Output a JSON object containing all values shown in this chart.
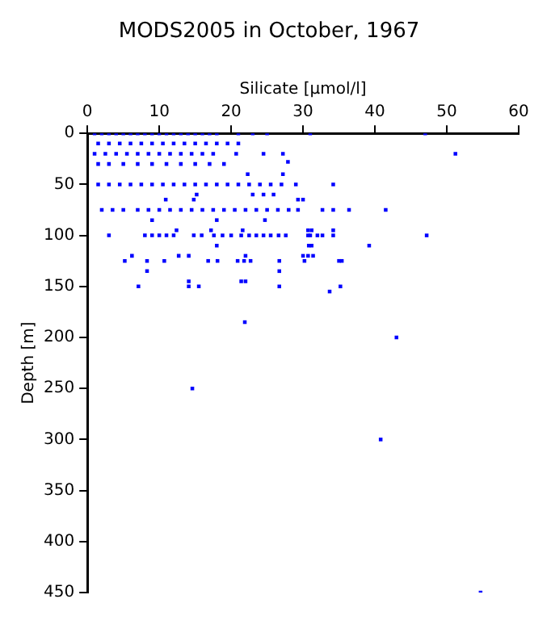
{
  "chart_data": {
    "type": "scatter",
    "title": "MODS2005 in October, 1967",
    "xlabel": "Silicate [µmol/l]",
    "ylabel": "Depth [m]",
    "xlim": [
      0,
      60
    ],
    "xticks": [
      0,
      10,
      20,
      30,
      40,
      50,
      60
    ],
    "ylim": [
      450,
      0
    ],
    "yticks": [
      0,
      50,
      100,
      150,
      200,
      250,
      300,
      350,
      400,
      450
    ],
    "grid": false,
    "legend": false,
    "marker": "square",
    "series": [
      {
        "color": "#0000ff",
        "x": [
          1,
          2,
          3,
          4,
          5,
          6,
          7,
          8,
          9,
          10,
          11,
          12,
          13,
          14,
          15,
          16,
          17,
          18,
          21,
          23,
          25,
          31,
          47,
          1.5,
          3,
          4.5,
          6,
          7.5,
          9,
          10.5,
          12,
          13.5,
          15,
          16.5,
          18,
          19.5,
          21,
          1,
          2.5,
          4,
          5.5,
          7,
          8.5,
          10,
          11.5,
          13,
          14.5,
          16,
          17.5,
          20.7,
          24.5,
          27.2,
          51.2,
          27.9,
          1.5,
          3,
          5,
          7,
          9,
          11,
          13,
          15,
          17,
          19,
          22.3,
          27.2,
          1.5,
          3,
          4.5,
          6,
          7.5,
          9,
          10.5,
          12,
          13.5,
          15,
          16.5,
          18,
          19.5,
          21,
          22.5,
          24,
          25.5,
          27,
          29,
          34.2,
          15.2,
          23,
          24.5,
          25.9,
          10.9,
          14.8,
          29.3,
          30,
          2,
          3.5,
          5,
          7,
          8.5,
          10,
          11.5,
          13,
          14.5,
          16,
          17.5,
          19,
          20.5,
          22,
          23.5,
          25,
          26.5,
          28,
          29.3,
          32.7,
          34.2,
          36.4,
          41.5,
          9,
          18,
          24.7,
          12.4,
          17.2,
          21.6,
          30.7,
          31.2,
          34.2,
          3,
          8,
          9,
          10,
          11,
          12,
          14.8,
          15.9,
          17.6,
          18.8,
          20,
          21.4,
          22.5,
          23.5,
          24.5,
          25.5,
          26.6,
          27.6,
          30.7,
          31,
          32,
          32.7,
          34.2,
          47.2,
          18,
          30.8,
          31.2,
          39.2,
          6.2,
          12.7,
          14.1,
          22,
          30,
          31.4,
          30.7,
          5.2,
          8.3,
          10.7,
          16.8,
          18.1,
          20.9,
          21.8,
          22.7,
          26.7,
          30.2,
          35,
          35.4,
          8.3,
          26.7,
          14.1,
          21.4,
          22,
          7.1,
          14.1,
          15.5,
          26.7,
          35.2,
          33.7,
          21.9,
          43,
          14.6,
          40.8,
          54.7
        ],
        "values": [
          0,
          0,
          0,
          0,
          0,
          0,
          0,
          0,
          0,
          0,
          0,
          0,
          0,
          0,
          0,
          0,
          0,
          0,
          0,
          0,
          0,
          0,
          0,
          10,
          10,
          10,
          10,
          10,
          10,
          10,
          10,
          10,
          10,
          10,
          10,
          10,
          10,
          20,
          20,
          20,
          20,
          20,
          20,
          20,
          20,
          20,
          20,
          20,
          20,
          20,
          20,
          20,
          20,
          28,
          30,
          30,
          30,
          30,
          30,
          30,
          30,
          30,
          30,
          30,
          40,
          40,
          50,
          50,
          50,
          50,
          50,
          50,
          50,
          50,
          50,
          50,
          50,
          50,
          50,
          50,
          50,
          50,
          50,
          50,
          50,
          50,
          60,
          60,
          60,
          60,
          65,
          65,
          65,
          65,
          75,
          75,
          75,
          75,
          75,
          75,
          75,
          75,
          75,
          75,
          75,
          75,
          75,
          75,
          75,
          75,
          75,
          75,
          75,
          75,
          75,
          75,
          75,
          85,
          85,
          85,
          95,
          95,
          95,
          95,
          95,
          95,
          100,
          100,
          100,
          100,
          100,
          100,
          100,
          100,
          100,
          100,
          100,
          100,
          100,
          100,
          100,
          100,
          100,
          100,
          100,
          100,
          100,
          100,
          100,
          100,
          110,
          110,
          110,
          110,
          120,
          120,
          120,
          120,
          120,
          120,
          120,
          125,
          125,
          125,
          125,
          125,
          125,
          125,
          125,
          125,
          125,
          125,
          125,
          135,
          135,
          145,
          145,
          145,
          150,
          150,
          150,
          150,
          150,
          155,
          185,
          200,
          250,
          300,
          450
        ]
      }
    ]
  }
}
